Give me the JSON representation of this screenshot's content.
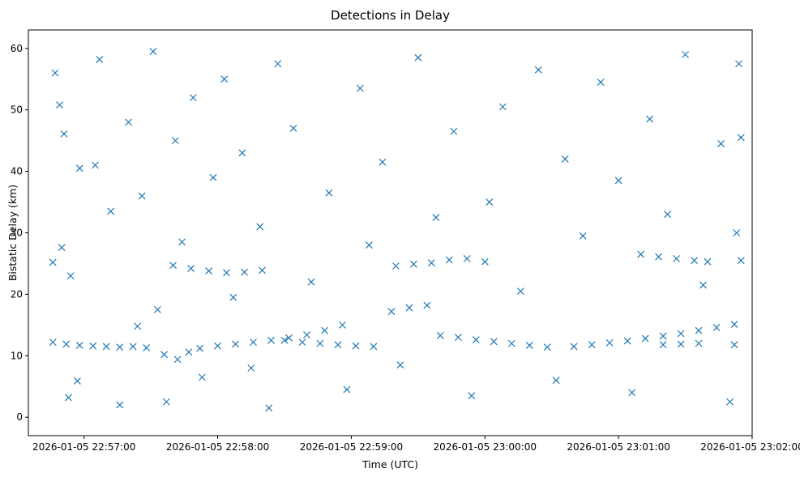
{
  "chart_data": {
    "type": "scatter",
    "title": "Detections in Delay",
    "xlabel": "Time (UTC)",
    "ylabel": "Bistatic Delay (km)",
    "x_axis": {
      "type": "datetime",
      "range": [
        "2026-01-05 22:56:35",
        "2026-01-05 23:02:00"
      ],
      "ticks": [
        "2026-01-05 22:57:00",
        "2026-01-05 22:58:00",
        "2026-01-05 22:59:00",
        "2026-01-05 23:00:00",
        "2026-01-05 23:01:00",
        "2026-01-05 23:02:00"
      ]
    },
    "y_axis": {
      "range": [
        -3.0,
        63.0
      ],
      "ticks": [
        "0",
        "10",
        "20",
        "30",
        "40",
        "50",
        "60"
      ]
    },
    "grid": false,
    "legend": "none",
    "marker": "x",
    "color": "#1f77b4",
    "series": [
      {
        "points": [
          [
            "2026-01-05 22:56:46",
            12.2
          ],
          [
            "2026-01-05 22:56:52",
            11.9
          ],
          [
            "2026-01-05 22:56:58",
            11.7
          ],
          [
            "2026-01-05 22:57:04",
            11.6
          ],
          [
            "2026-01-05 22:57:10",
            11.5
          ],
          [
            "2026-01-05 22:57:16",
            11.4
          ],
          [
            "2026-01-05 22:57:22",
            11.5
          ],
          [
            "2026-01-05 22:57:28",
            11.3
          ],
          [
            "2026-01-05 22:57:36",
            10.2
          ],
          [
            "2026-01-05 22:57:42",
            9.4
          ],
          [
            "2026-01-05 22:57:47",
            10.6
          ],
          [
            "2026-01-05 22:57:52",
            11.2
          ],
          [
            "2026-01-05 22:58:00",
            11.6
          ],
          [
            "2026-01-05 22:58:08",
            11.9
          ],
          [
            "2026-01-05 22:58:16",
            12.2
          ],
          [
            "2026-01-05 22:58:24",
            12.5
          ],
          [
            "2026-01-05 22:58:32",
            12.9
          ],
          [
            "2026-01-05 22:58:40",
            13.4
          ],
          [
            "2026-01-05 22:58:48",
            14.1
          ],
          [
            "2026-01-05 22:58:56",
            15.0
          ],
          [
            "2026-01-05 22:58:30",
            12.5
          ],
          [
            "2026-01-05 22:58:38",
            12.2
          ],
          [
            "2026-01-05 22:58:46",
            12.0
          ],
          [
            "2026-01-05 22:58:54",
            11.8
          ],
          [
            "2026-01-05 22:59:02",
            11.6
          ],
          [
            "2026-01-05 22:59:10",
            11.5
          ],
          [
            "2026-01-05 22:59:18",
            17.2
          ],
          [
            "2026-01-05 22:59:26",
            17.8
          ],
          [
            "2026-01-05 22:59:34",
            18.2
          ],
          [
            "2026-01-05 22:59:20",
            24.6
          ],
          [
            "2026-01-05 22:59:28",
            24.9
          ],
          [
            "2026-01-05 22:59:36",
            25.1
          ],
          [
            "2026-01-05 22:59:44",
            25.6
          ],
          [
            "2026-01-05 22:59:52",
            25.8
          ],
          [
            "2026-01-05 23:00:00",
            25.3
          ],
          [
            "2026-01-05 22:59:40",
            13.3
          ],
          [
            "2026-01-05 22:59:48",
            13.0
          ],
          [
            "2026-01-05 22:59:56",
            12.6
          ],
          [
            "2026-01-05 23:00:04",
            12.3
          ],
          [
            "2026-01-05 23:00:12",
            12.0
          ],
          [
            "2026-01-05 23:00:20",
            11.7
          ],
          [
            "2026-01-05 23:00:28",
            11.4
          ],
          [
            "2026-01-05 22:57:40",
            24.7
          ],
          [
            "2026-01-05 22:57:48",
            24.2
          ],
          [
            "2026-01-05 22:57:56",
            23.8
          ],
          [
            "2026-01-05 22:58:04",
            23.5
          ],
          [
            "2026-01-05 22:58:12",
            23.6
          ],
          [
            "2026-01-05 22:58:20",
            23.9
          ],
          [
            "2026-01-05 23:00:40",
            11.5
          ],
          [
            "2026-01-05 23:00:48",
            11.8
          ],
          [
            "2026-01-05 23:00:56",
            12.1
          ],
          [
            "2026-01-05 23:01:04",
            12.4
          ],
          [
            "2026-01-05 23:01:12",
            12.8
          ],
          [
            "2026-01-05 23:01:20",
            13.2
          ],
          [
            "2026-01-05 23:01:28",
            13.6
          ],
          [
            "2026-01-05 23:01:36",
            14.1
          ],
          [
            "2026-01-05 23:01:44",
            14.6
          ],
          [
            "2026-01-05 23:01:52",
            15.1
          ],
          [
            "2026-01-05 23:01:10",
            26.5
          ],
          [
            "2026-01-05 23:01:18",
            26.1
          ],
          [
            "2026-01-05 23:01:26",
            25.8
          ],
          [
            "2026-01-05 23:01:34",
            25.5
          ],
          [
            "2026-01-05 23:01:40",
            25.3
          ],
          [
            "2026-01-05 23:01:20",
            11.8
          ],
          [
            "2026-01-05 23:01:28",
            11.9
          ],
          [
            "2026-01-05 23:01:36",
            12.0
          ],
          [
            "2026-01-05 22:56:46",
            25.2
          ],
          [
            "2026-01-05 22:56:50",
            27.6
          ],
          [
            "2026-01-05 22:56:54",
            23.0
          ],
          [
            "2026-01-05 22:56:58",
            40.5
          ],
          [
            "2026-01-05 22:56:47",
            56.0
          ],
          [
            "2026-01-05 22:56:49",
            50.8
          ],
          [
            "2026-01-05 22:56:51",
            46.1
          ],
          [
            "2026-01-05 22:56:53",
            3.2
          ],
          [
            "2026-01-05 22:56:57",
            5.9
          ],
          [
            "2026-01-05 22:57:05",
            41.0
          ],
          [
            "2026-01-05 22:57:07",
            58.2
          ],
          [
            "2026-01-05 22:57:12",
            33.5
          ],
          [
            "2026-01-05 22:57:16",
            2.0
          ],
          [
            "2026-01-05 22:57:20",
            48.0
          ],
          [
            "2026-01-05 22:57:24",
            14.8
          ],
          [
            "2026-01-05 22:57:26",
            36.0
          ],
          [
            "2026-01-05 22:57:31",
            59.5
          ],
          [
            "2026-01-05 22:57:33",
            17.5
          ],
          [
            "2026-01-05 22:57:37",
            2.5
          ],
          [
            "2026-01-05 22:57:41",
            45.0
          ],
          [
            "2026-01-05 22:57:44",
            28.5
          ],
          [
            "2026-01-05 22:57:49",
            52.0
          ],
          [
            "2026-01-05 22:57:53",
            6.5
          ],
          [
            "2026-01-05 22:57:58",
            39.0
          ],
          [
            "2026-01-05 22:58:03",
            55.0
          ],
          [
            "2026-01-05 22:58:07",
            19.5
          ],
          [
            "2026-01-05 22:58:11",
            43.0
          ],
          [
            "2026-01-05 22:58:15",
            8.0
          ],
          [
            "2026-01-05 22:58:19",
            31.0
          ],
          [
            "2026-01-05 22:58:23",
            1.5
          ],
          [
            "2026-01-05 22:58:27",
            57.5
          ],
          [
            "2026-01-05 22:58:34",
            47.0
          ],
          [
            "2026-01-05 22:58:42",
            22.0
          ],
          [
            "2026-01-05 22:58:50",
            36.5
          ],
          [
            "2026-01-05 22:58:58",
            4.5
          ],
          [
            "2026-01-05 22:59:04",
            53.5
          ],
          [
            "2026-01-05 22:59:08",
            28.0
          ],
          [
            "2026-01-05 22:59:14",
            41.5
          ],
          [
            "2026-01-05 22:59:22",
            8.5
          ],
          [
            "2026-01-05 22:59:30",
            58.5
          ],
          [
            "2026-01-05 22:59:38",
            32.5
          ],
          [
            "2026-01-05 22:59:46",
            46.5
          ],
          [
            "2026-01-05 22:59:54",
            3.5
          ],
          [
            "2026-01-05 23:00:02",
            35.0
          ],
          [
            "2026-01-05 23:00:08",
            50.5
          ],
          [
            "2026-01-05 23:00:16",
            20.5
          ],
          [
            "2026-01-05 23:00:24",
            56.5
          ],
          [
            "2026-01-05 23:00:32",
            6.0
          ],
          [
            "2026-01-05 23:00:36",
            42.0
          ],
          [
            "2026-01-05 23:00:44",
            29.5
          ],
          [
            "2026-01-05 23:00:52",
            54.5
          ],
          [
            "2026-01-05 23:01:00",
            38.5
          ],
          [
            "2026-01-05 23:01:06",
            4.0
          ],
          [
            "2026-01-05 23:01:14",
            48.5
          ],
          [
            "2026-01-05 23:01:22",
            33.0
          ],
          [
            "2026-01-05 23:01:30",
            59.0
          ],
          [
            "2026-01-05 23:01:38",
            21.5
          ],
          [
            "2026-01-05 23:01:46",
            44.5
          ],
          [
            "2026-01-05 23:01:50",
            2.5
          ],
          [
            "2026-01-05 23:01:52",
            11.8
          ],
          [
            "2026-01-05 23:01:53",
            30.0
          ],
          [
            "2026-01-05 23:01:54",
            57.5
          ],
          [
            "2026-01-05 23:01:55",
            25.5
          ],
          [
            "2026-01-05 23:01:55",
            45.5
          ]
        ]
      }
    ]
  }
}
